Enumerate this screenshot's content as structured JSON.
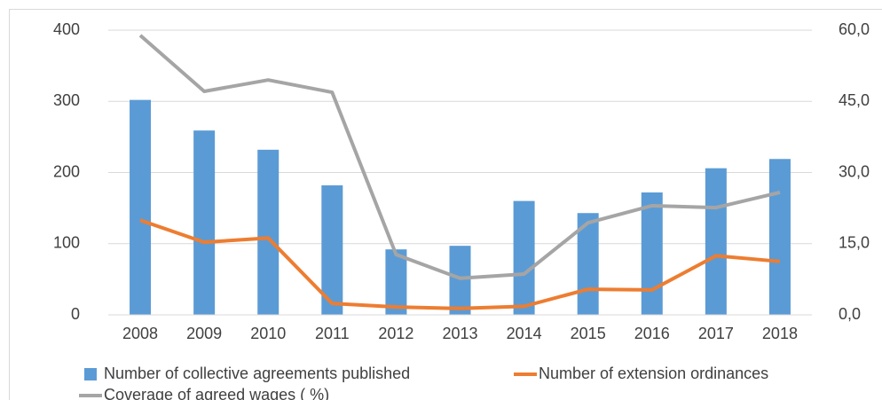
{
  "chart_data": {
    "type": "combo",
    "categories": [
      "2008",
      "2009",
      "2010",
      "2011",
      "2012",
      "2013",
      "2014",
      "2015",
      "2016",
      "2017",
      "2018"
    ],
    "series": [
      {
        "name": "Number of collective agreements published",
        "type": "bar",
        "color": "#5b9bd5",
        "axis": "y",
        "values": [
          302,
          259,
          232,
          182,
          92,
          97,
          160,
          143,
          172,
          206,
          219
        ]
      },
      {
        "name": "Number of extension ordinances",
        "type": "line",
        "color": "#ed7d31",
        "axis": "y",
        "values": [
          133,
          102,
          108,
          16,
          11,
          9,
          12,
          36,
          35,
          83,
          75
        ]
      },
      {
        "name": "Coverage of agreed wages ( %)",
        "type": "line",
        "color": "#a5a5a5",
        "axis": "y2",
        "values": [
          58.9,
          47.1,
          49.5,
          46.9,
          12.7,
          7.7,
          8.6,
          19.4,
          23.0,
          22.6,
          25.8
        ]
      }
    ],
    "ylim": [
      0,
      400
    ],
    "yticks": [
      0,
      100,
      200,
      300,
      400
    ],
    "y2lim": [
      0,
      60
    ],
    "y2ticks": [
      {
        "value": 0,
        "label": "0,0"
      },
      {
        "value": 15,
        "label": "15,0"
      },
      {
        "value": 30,
        "label": "30,0"
      },
      {
        "value": 45,
        "label": "45,0"
      },
      {
        "value": 60,
        "label": "60,0"
      }
    ],
    "grid": true,
    "legend": "bottom"
  }
}
